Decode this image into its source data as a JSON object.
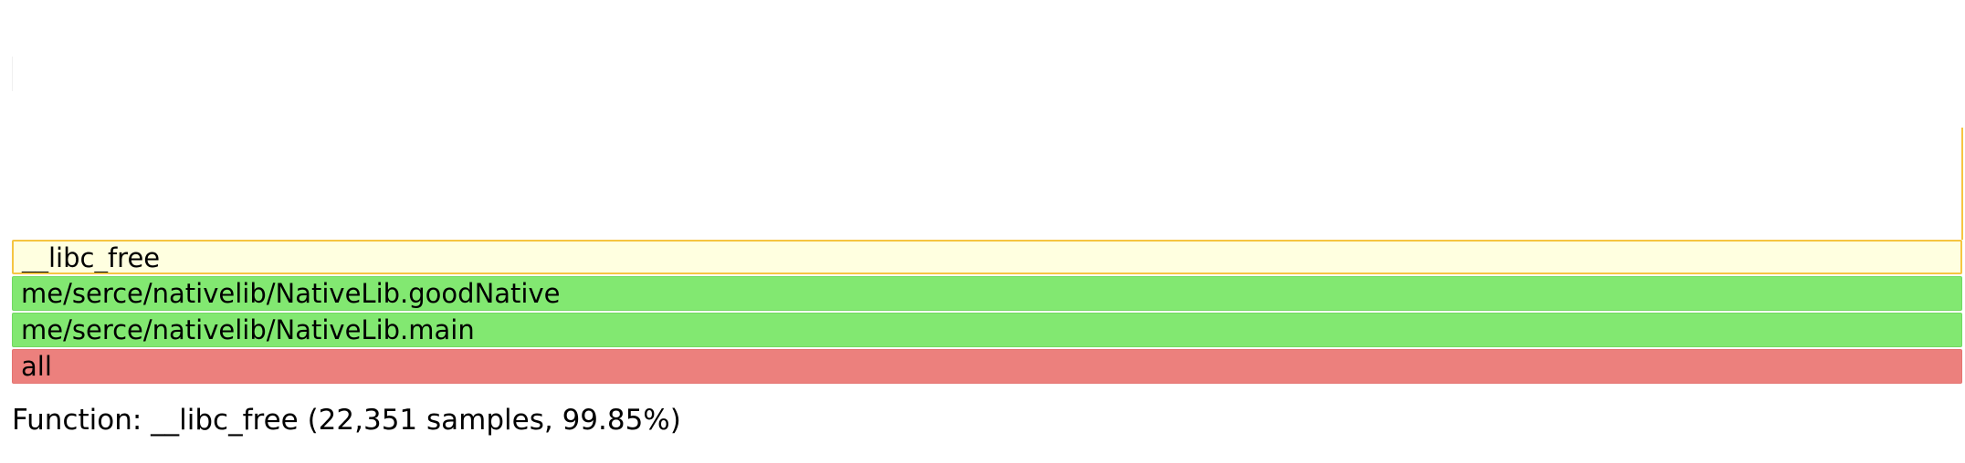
{
  "frames": [
    {
      "id": "frame-libc-free",
      "label": "__libc_free",
      "kind": "native",
      "fill": "#ffffe0",
      "stroke": "#f5c542",
      "highlighted": true
    },
    {
      "id": "frame-goodnative",
      "label": "me/serce/nativelib/NativeLib.goodNative",
      "kind": "java",
      "fill": "#82e871"
    },
    {
      "id": "frame-main",
      "label": "me/serce/nativelib/NativeLib.main",
      "kind": "java",
      "fill": "#82e871"
    },
    {
      "id": "frame-all",
      "label": "all",
      "kind": "root",
      "fill": "#ec807d"
    }
  ],
  "status": {
    "text": "Function: __libc_free (22,351 samples, 99.85%)"
  }
}
